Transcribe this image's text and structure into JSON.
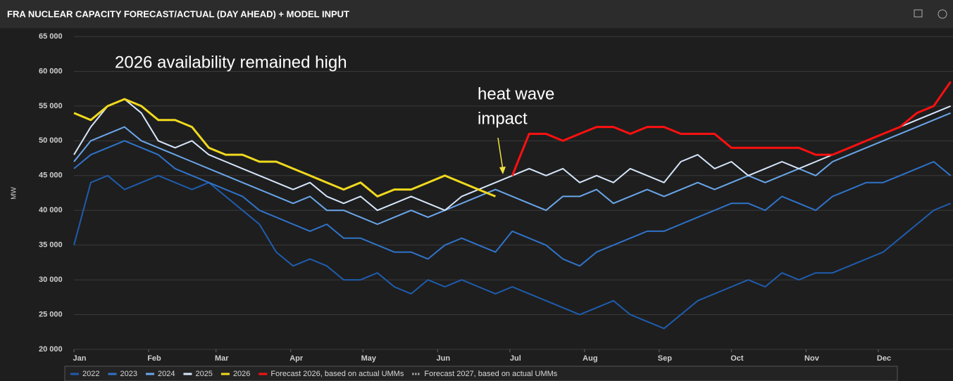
{
  "chart_data": {
    "type": "line",
    "title": "FRA NUCLEAR CAPACITY FORECAST/ACTUAL (DAY AHEAD) + MODEL INPUT",
    "y_label": "MW",
    "annotations": [
      "2026 availability remained high",
      [
        "heat wave",
        "impact"
      ]
    ],
    "xlim": [
      0,
      365
    ],
    "xticks": [
      {
        "value": 0,
        "label": "Jan"
      },
      {
        "value": 31,
        "label": "Feb"
      },
      {
        "value": 59,
        "label": "Mar"
      },
      {
        "value": 90,
        "label": "Apr"
      },
      {
        "value": 120,
        "label": "May"
      },
      {
        "value": 151,
        "label": "Jun"
      },
      {
        "value": 181,
        "label": "Jul"
      },
      {
        "value": 212,
        "label": "Aug"
      },
      {
        "value": 243,
        "label": "Sep"
      },
      {
        "value": 273,
        "label": "Oct"
      },
      {
        "value": 304,
        "label": "Nov"
      },
      {
        "value": 334,
        "label": "Dec"
      }
    ],
    "ylim": [
      20000,
      65000
    ],
    "yticks": [
      {
        "value": 20000,
        "label": "20 000"
      },
      {
        "value": 25000,
        "label": "25 000"
      },
      {
        "value": 30000,
        "label": "30 000"
      },
      {
        "value": 35000,
        "label": "35 000"
      },
      {
        "value": 40000,
        "label": "40 000"
      },
      {
        "value": 45000,
        "label": "45 000"
      },
      {
        "value": 50000,
        "label": "50 000"
      },
      {
        "value": 55000,
        "label": "55 000"
      },
      {
        "value": 60000,
        "label": "60 000"
      },
      {
        "value": 65000,
        "label": "65 000"
      }
    ],
    "grid": true,
    "x": [
      0,
      7,
      14,
      21,
      28,
      35,
      42,
      49,
      56,
      63,
      70,
      77,
      84,
      91,
      98,
      105,
      112,
      119,
      126,
      133,
      140,
      147,
      154,
      161,
      168,
      175,
      182,
      189,
      196,
      203,
      210,
      217,
      224,
      231,
      238,
      245,
      252,
      259,
      266,
      273,
      280,
      287,
      294,
      301,
      308,
      315,
      322,
      329,
      336,
      343,
      350,
      357,
      364
    ],
    "series": [
      {
        "name": "2022",
        "color": "#1f5cad",
        "values": [
          35000,
          44000,
          45000,
          43000,
          44000,
          45000,
          44000,
          43000,
          44000,
          42000,
          40000,
          38000,
          34000,
          32000,
          33000,
          32000,
          30000,
          30000,
          31000,
          29000,
          28000,
          30000,
          29000,
          30000,
          29000,
          28000,
          29000,
          28000,
          27000,
          26000,
          25000,
          26000,
          27000,
          25000,
          24000,
          23000,
          25000,
          27000,
          28000,
          29000,
          30000,
          29000,
          31000,
          30000,
          31000,
          31000,
          32000,
          33000,
          34000,
          36000,
          38000,
          40000,
          41000
        ]
      },
      {
        "name": "2023",
        "color": "#2f73c9",
        "values": [
          46000,
          48000,
          49000,
          50000,
          49000,
          48000,
          46000,
          45000,
          44000,
          43000,
          42000,
          40000,
          39000,
          38000,
          37000,
          38000,
          36000,
          36000,
          35000,
          34000,
          34000,
          33000,
          35000,
          36000,
          35000,
          34000,
          37000,
          36000,
          35000,
          33000,
          32000,
          34000,
          35000,
          36000,
          37000,
          37000,
          38000,
          39000,
          40000,
          41000,
          41000,
          40000,
          42000,
          41000,
          40000,
          42000,
          43000,
          44000,
          44000,
          45000,
          46000,
          47000,
          45000
        ]
      },
      {
        "name": "2024",
        "color": "#6aa6ea",
        "values": [
          47000,
          50000,
          51000,
          52000,
          50000,
          49000,
          48000,
          47000,
          46000,
          45000,
          44000,
          43000,
          42000,
          41000,
          42000,
          40000,
          40000,
          39000,
          38000,
          39000,
          40000,
          39000,
          40000,
          41000,
          42000,
          43000,
          42000,
          41000,
          40000,
          42000,
          42000,
          43000,
          41000,
          42000,
          43000,
          42000,
          43000,
          44000,
          43000,
          44000,
          45000,
          44000,
          45000,
          46000,
          45000,
          47000,
          48000,
          49000,
          50000,
          51000,
          52000,
          53000,
          54000
        ]
      },
      {
        "name": "2025",
        "color": "#d6e6fb",
        "values": [
          48000,
          52000,
          55000,
          56000,
          54000,
          50000,
          49000,
          50000,
          48000,
          47000,
          46000,
          45000,
          44000,
          43000,
          44000,
          42000,
          41000,
          42000,
          40000,
          41000,
          42000,
          41000,
          40000,
          42000,
          43000,
          44000,
          45000,
          46000,
          45000,
          46000,
          44000,
          45000,
          44000,
          46000,
          45000,
          44000,
          47000,
          48000,
          46000,
          47000,
          45000,
          46000,
          47000,
          46000,
          47000,
          48000,
          49000,
          50000,
          51000,
          52000,
          53000,
          54000,
          55000
        ]
      },
      {
        "name": "2026",
        "color": "#f0d91e",
        "values": [
          54000,
          53000,
          55000,
          56000,
          55000,
          53000,
          53000,
          52000,
          49000,
          48000,
          48000,
          47000,
          47000,
          46000,
          45000,
          44000,
          43000,
          44000,
          42000,
          43000,
          43000,
          44000,
          45000,
          44000,
          43000,
          42000,
          null,
          null,
          null,
          null,
          null,
          null,
          null,
          null,
          null,
          null,
          null,
          null,
          null,
          null,
          null,
          null,
          null,
          null,
          null,
          null,
          null,
          null,
          null,
          null,
          null,
          null,
          null
        ]
      },
      {
        "name": "Forecast 2026, based on actual UMMs",
        "color": "#ff1010",
        "values": [
          null,
          null,
          null,
          null,
          null,
          null,
          null,
          null,
          null,
          null,
          null,
          null,
          null,
          null,
          null,
          null,
          null,
          null,
          null,
          null,
          null,
          null,
          null,
          null,
          null,
          null,
          45000,
          51000,
          51000,
          50000,
          51000,
          52000,
          52000,
          51000,
          52000,
          52000,
          51000,
          51000,
          51000,
          49000,
          49000,
          49000,
          49000,
          49000,
          48000,
          48000,
          49000,
          50000,
          51000,
          52000,
          54000,
          55000,
          58500
        ]
      },
      {
        "name": "Forecast 2027, based on actual UMMs",
        "color": "#bfbfbf",
        "dashed": true,
        "values": [
          null,
          null,
          null,
          null,
          null,
          null,
          null,
          null,
          null,
          null,
          null,
          null,
          null,
          null,
          null,
          null,
          null,
          null,
          null,
          null,
          null,
          null,
          null,
          null,
          null,
          null,
          null,
          null,
          null,
          null,
          null,
          null,
          null,
          null,
          null,
          null,
          null,
          null,
          null,
          null,
          null,
          null,
          null,
          null,
          null,
          null,
          null,
          null,
          null,
          null,
          null,
          null,
          null
        ]
      }
    ]
  }
}
